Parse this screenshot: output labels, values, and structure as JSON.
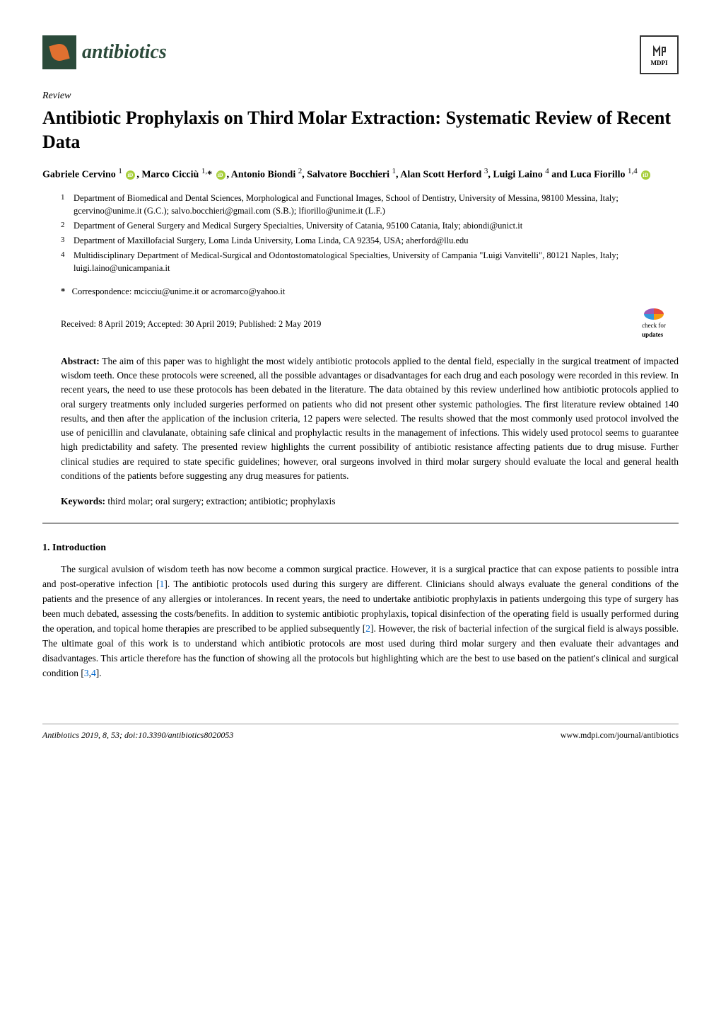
{
  "journal": {
    "name": "antibiotics",
    "publisher": "MDPI"
  },
  "article_type": "Review",
  "title": "Antibiotic Prophylaxis on Third Molar Extraction: Systematic Review of Recent Data",
  "authors_html": "Gabriele Cervino <sup>1</sup> {orcid}, Marco Cicciù <sup>1,</sup>* {orcid}, Antonio Biondi <sup>2</sup>, Salvatore Bocchieri <sup>1</sup>, Alan Scott Herford <sup>3</sup>, Luigi Laino <sup>4</sup> and Luca Fiorillo <sup>1,4</sup> {orcid}",
  "affiliations": [
    {
      "num": "1",
      "text": "Department of Biomedical and Dental Sciences, Morphological and Functional Images, School of Dentistry, University of Messina, 98100 Messina, Italy; gcervino@unime.it (G.C.); salvo.bocchieri@gmail.com (S.B.); lfiorillo@unime.it (L.F.)"
    },
    {
      "num": "2",
      "text": "Department of General Surgery and Medical Surgery Specialties, University of Catania, 95100 Catania, Italy; abiondi@unict.it"
    },
    {
      "num": "3",
      "text": "Department of Maxillofacial Surgery, Loma Linda University, Loma Linda, CA 92354, USA; aherford@llu.edu"
    },
    {
      "num": "4",
      "text": "Multidisciplinary Department of Medical-Surgical and Odontostomatological Specialties, University of Campania \"Luigi Vanvitelli\", 80121 Naples, Italy; luigi.laino@unicampania.it"
    }
  ],
  "correspondence": "Correspondence: mcicciu@unime.it or acromarco@yahoo.it",
  "dates": "Received: 8 April 2019; Accepted: 30 April 2019; Published: 2 May 2019",
  "check_updates_label": "check for",
  "check_updates_bold": "updates",
  "abstract_label": "Abstract:",
  "abstract": "The aim of this paper was to highlight the most widely antibiotic protocols applied to the dental field, especially in the surgical treatment of impacted wisdom teeth. Once these protocols were screened, all the possible advantages or disadvantages for each drug and each posology were recorded in this review. In recent years, the need to use these protocols has been debated in the literature. The data obtained by this review underlined how antibiotic protocols applied to oral surgery treatments only included surgeries performed on patients who did not present other systemic pathologies. The first literature review obtained 140 results, and then after the application of the inclusion criteria, 12 papers were selected. The results showed that the most commonly used protocol involved the use of penicillin and clavulanate, obtaining safe clinical and prophylactic results in the management of infections. This widely used protocol seems to guarantee high predictability and safety. The presented review highlights the current possibility of antibiotic resistance affecting patients due to drug misuse. Further clinical studies are required to state specific guidelines; however, oral surgeons involved in third molar surgery should evaluate the local and general health conditions of the patients before suggesting any drug measures for patients.",
  "keywords_label": "Keywords:",
  "keywords": "third molar; oral surgery; extraction; antibiotic; prophylaxis",
  "section1_heading": "1. Introduction",
  "section1_body": "The surgical avulsion of wisdom teeth has now become a common surgical practice. However, it is a surgical practice that can expose patients to possible intra and post-operative infection [1]. The antibiotic protocols used during this surgery are different. Clinicians should always evaluate the general conditions of the patients and the presence of any allergies or intolerances. In recent years, the need to undertake antibiotic prophylaxis in patients undergoing this type of surgery has been much debated, assessing the costs/benefits. In addition to systemic antibiotic prophylaxis, topical disinfection of the operating field is usually performed during the operation, and topical home therapies are prescribed to be applied subsequently [2]. However, the risk of bacterial infection of the surgical field is always possible. The ultimate goal of this work is to understand which antibiotic protocols are most used during third molar surgery and then evaluate their advantages and disadvantages. This article therefore has the function of showing all the protocols but highlighting which are the best to use based on the patient's clinical and surgical condition [3,4].",
  "refs": {
    "r1": "1",
    "r2": "2",
    "r3": "3",
    "r4": "4"
  },
  "footer_left": "Antibiotics 2019, 8, 53; doi:10.3390/antibiotics8020053",
  "footer_right": "www.mdpi.com/journal/antibiotics"
}
